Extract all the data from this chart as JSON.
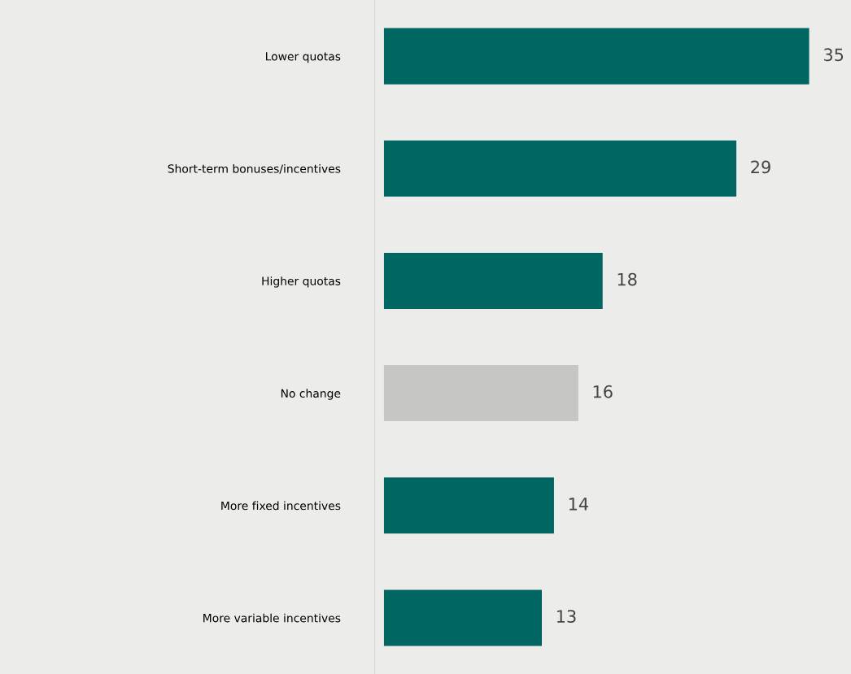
{
  "chart_data": {
    "type": "bar",
    "orientation": "horizontal",
    "categories": [
      "Lower quotas",
      "Short-term bonuses/incentives",
      "Higher quotas",
      "No change",
      "More fixed incentives",
      "More variable incentives"
    ],
    "values": [
      35,
      29,
      18,
      16,
      14,
      13
    ],
    "colors": [
      "#006661",
      "#006661",
      "#006661",
      "#c6c6c3",
      "#006661",
      "#006661"
    ],
    "data_labels": true,
    "tick_labels": "y",
    "grid": false,
    "legend": false
  }
}
